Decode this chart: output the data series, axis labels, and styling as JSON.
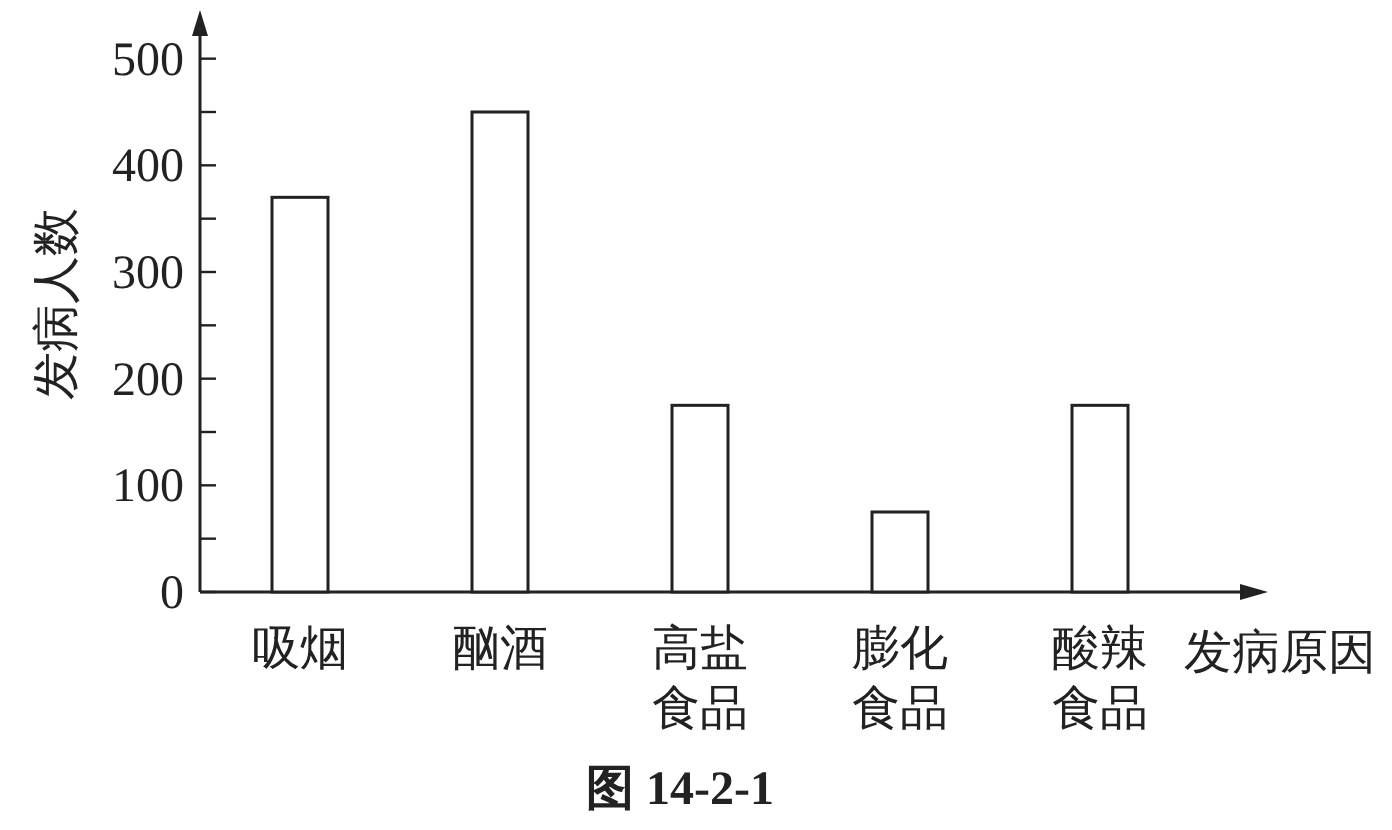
{
  "chart_data": {
    "type": "bar",
    "title": "图 14-2-1",
    "xlabel": "发病原因",
    "ylabel": "发病人数",
    "categories": [
      "吸烟",
      "酗酒",
      "高盐食品",
      "膨化食品",
      "酸辣食品"
    ],
    "values": [
      370,
      450,
      175,
      75,
      175
    ],
    "color": "#ffffff",
    "ylim": [
      0,
      540
    ],
    "yticks": [
      0,
      {
        "value": 50,
        "label": null
      },
      100,
      {
        "value": 150,
        "label": null
      },
      200,
      {
        "value": 250,
        "label": null
      },
      300,
      {
        "value": 350,
        "label": null
      },
      400,
      {
        "value": 450,
        "label": null
      },
      500
    ],
    "grid": false
  }
}
